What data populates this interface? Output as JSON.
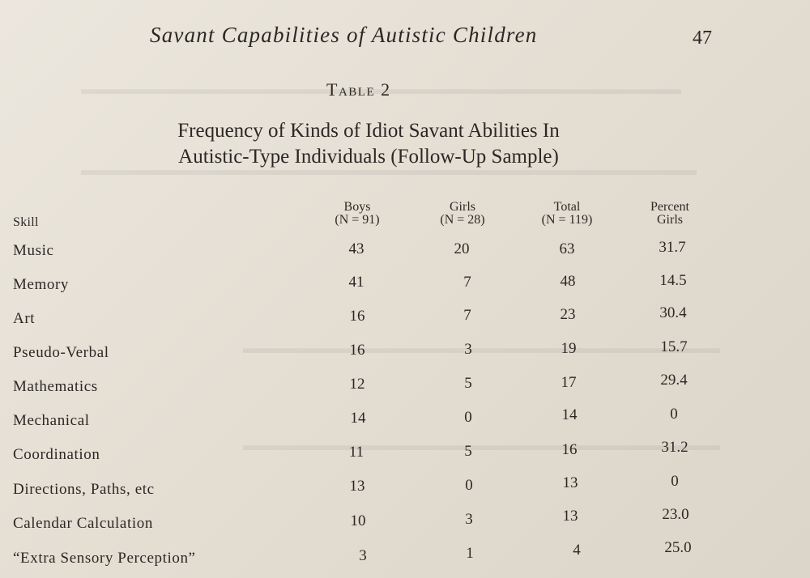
{
  "header": {
    "running_head": "Savant Capabilities of Autistic Children",
    "page_number": "47"
  },
  "table": {
    "number": "Table 2",
    "title_line_1": "Frequency of Kinds of Idiot Savant Abilities In",
    "title_line_2": "Autistic-Type Individuals (Follow-Up Sample)",
    "skill_header": "Skill",
    "columns": [
      {
        "line1": "Boys",
        "line2": "(N = 91)"
      },
      {
        "line1": "Girls",
        "line2": "(N = 28)"
      },
      {
        "line1": "Total",
        "line2": "(N = 119)"
      },
      {
        "line1": "Percent",
        "line2": "Girls"
      }
    ],
    "rows": [
      {
        "skill": "Music",
        "boys": "43",
        "girls": "20",
        "total": "63",
        "percent": "31.7"
      },
      {
        "skill": "Memory",
        "boys": "41",
        "girls": "7",
        "total": "48",
        "percent": "14.5"
      },
      {
        "skill": "Art",
        "boys": "16",
        "girls": "7",
        "total": "23",
        "percent": "30.4"
      },
      {
        "skill": "Pseudo-Verbal",
        "boys": "16",
        "girls": "3",
        "total": "19",
        "percent": "15.7"
      },
      {
        "skill": "Mathematics",
        "boys": "12",
        "girls": "5",
        "total": "17",
        "percent": "29.4"
      },
      {
        "skill": "Mechanical",
        "boys": "14",
        "girls": "0",
        "total": "14",
        "percent": "0"
      },
      {
        "skill": "Coordination",
        "boys": "11",
        "girls": "5",
        "total": "16",
        "percent": "31.2"
      },
      {
        "skill": "Directions, Paths, etc",
        "boys": "13",
        "girls": "0",
        "total": "13",
        "percent": "0"
      },
      {
        "skill": "Calendar Calculation",
        "boys": "10",
        "girls": "3",
        "total": "13",
        "percent": "23.0"
      },
      {
        "skill": "“Extra Sensory Perception”",
        "boys": "3",
        "girls": "1",
        "total": "4",
        "percent": "25.0"
      }
    ]
  }
}
